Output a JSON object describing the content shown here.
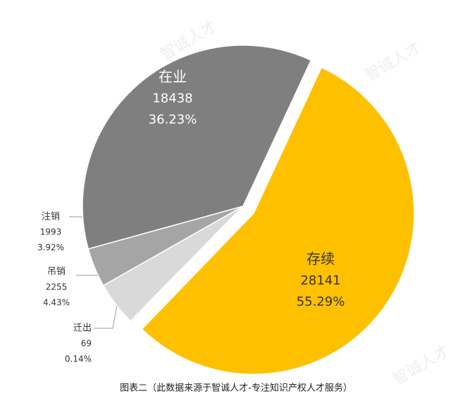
{
  "chart_data": {
    "type": "pie",
    "categories": [
      "存续",
      "迁出",
      "吊销",
      "注销",
      "在业"
    ],
    "values": [
      55.29,
      0.14,
      4.43,
      3.92,
      36.23
    ],
    "value_labels": [
      "55.29%",
      "0.14%",
      "4.43%",
      "3.92%",
      "36.23%"
    ],
    "counts": [
      28141,
      69,
      2255,
      1993,
      18438
    ],
    "colors": [
      "#ffc000",
      "#bfbfbf",
      "#d9d9d9",
      "#a5a5a5",
      "#7f7f7f"
    ],
    "exploded": [
      true,
      false,
      false,
      false,
      false
    ],
    "caption": "图表二（此数据来源于智诚人才-专注知识产权人才服务）",
    "watermark": "智诚人才"
  }
}
